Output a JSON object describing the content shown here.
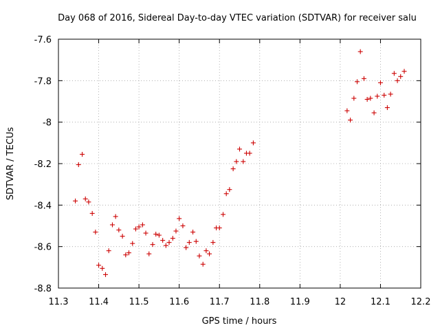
{
  "chart_data": {
    "type": "scatter",
    "title": "Day 068 of 2016, Sidereal Day-to-day VTEC variation (SDTVAR) for receiver salu",
    "xlabel": "GPS time / hours",
    "ylabel": "SDTVAR / TECUs",
    "xlim": [
      11.3,
      12.2
    ],
    "ylim": [
      -8.8,
      -7.6
    ],
    "xticks": [
      11.3,
      11.4,
      11.5,
      11.6,
      11.7,
      11.8,
      11.9,
      12.0,
      12.1,
      12.2
    ],
    "xtick_labels": [
      "11.3",
      "11.4",
      "11.5",
      "11.6",
      "11.7",
      "11.8",
      "11.9",
      "12",
      "12.1",
      "12.2"
    ],
    "yticks": [
      -7.6,
      -7.8,
      -8.0,
      -8.2,
      -8.4,
      -8.6,
      -8.8
    ],
    "ytick_labels": [
      "-7.6",
      "-7.8",
      "-8",
      "-8.2",
      "-8.4",
      "-8.6",
      "-8.8"
    ],
    "grid": true,
    "marker": "+",
    "color": "#cc0000",
    "points": [
      [
        11.342,
        -8.38
      ],
      [
        11.35,
        -8.205
      ],
      [
        11.359,
        -8.155
      ],
      [
        11.367,
        -8.37
      ],
      [
        11.375,
        -8.385
      ],
      [
        11.384,
        -8.44
      ],
      [
        11.392,
        -8.53
      ],
      [
        11.4,
        -8.69
      ],
      [
        11.409,
        -8.705
      ],
      [
        11.417,
        -8.735
      ],
      [
        11.425,
        -8.62
      ],
      [
        11.434,
        -8.495
      ],
      [
        11.442,
        -8.455
      ],
      [
        11.45,
        -8.52
      ],
      [
        11.459,
        -8.55
      ],
      [
        11.467,
        -8.64
      ],
      [
        11.475,
        -8.63
      ],
      [
        11.484,
        -8.585
      ],
      [
        11.492,
        -8.515
      ],
      [
        11.5,
        -8.505
      ],
      [
        11.509,
        -8.495
      ],
      [
        11.517,
        -8.535
      ],
      [
        11.525,
        -8.635
      ],
      [
        11.534,
        -8.59
      ],
      [
        11.542,
        -8.54
      ],
      [
        11.55,
        -8.545
      ],
      [
        11.559,
        -8.57
      ],
      [
        11.567,
        -8.595
      ],
      [
        11.575,
        -8.58
      ],
      [
        11.584,
        -8.56
      ],
      [
        11.592,
        -8.525
      ],
      [
        11.6,
        -8.465
      ],
      [
        11.609,
        -8.5
      ],
      [
        11.617,
        -8.605
      ],
      [
        11.625,
        -8.58
      ],
      [
        11.634,
        -8.53
      ],
      [
        11.642,
        -8.575
      ],
      [
        11.65,
        -8.645
      ],
      [
        11.659,
        -8.685
      ],
      [
        11.667,
        -8.62
      ],
      [
        11.675,
        -8.635
      ],
      [
        11.684,
        -8.58
      ],
      [
        11.692,
        -8.51
      ],
      [
        11.7,
        -8.51
      ],
      [
        11.709,
        -8.445
      ],
      [
        11.717,
        -8.345
      ],
      [
        11.725,
        -8.325
      ],
      [
        11.734,
        -8.225
      ],
      [
        11.742,
        -8.19
      ],
      [
        11.75,
        -8.13
      ],
      [
        11.759,
        -8.19
      ],
      [
        11.767,
        -8.15
      ],
      [
        11.775,
        -8.15
      ],
      [
        11.784,
        -8.1
      ],
      [
        12.017,
        -7.945
      ],
      [
        12.025,
        -7.99
      ],
      [
        12.034,
        -7.885
      ],
      [
        12.042,
        -7.805
      ],
      [
        12.05,
        -7.66
      ],
      [
        12.059,
        -7.79
      ],
      [
        12.067,
        -7.89
      ],
      [
        12.075,
        -7.885
      ],
      [
        12.084,
        -7.955
      ],
      [
        12.092,
        -7.875
      ],
      [
        12.1,
        -7.81
      ],
      [
        12.109,
        -7.87
      ],
      [
        12.117,
        -7.93
      ],
      [
        12.125,
        -7.865
      ],
      [
        12.134,
        -7.765
      ],
      [
        12.142,
        -7.8
      ],
      [
        12.15,
        -7.78
      ],
      [
        12.159,
        -7.755
      ]
    ]
  }
}
